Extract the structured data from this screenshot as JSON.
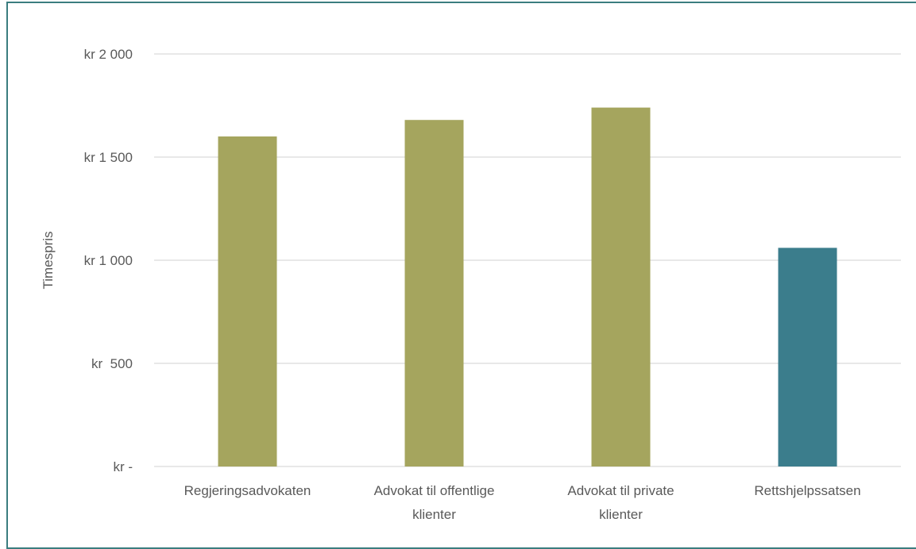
{
  "chart_data": {
    "type": "bar",
    "categories": [
      [
        "Regjeringsadvokaten"
      ],
      [
        "Advokat til offentlige",
        "klienter"
      ],
      [
        "Advokat til private",
        "klienter"
      ],
      [
        "Rettshjelpssatsen"
      ]
    ],
    "values": [
      1600,
      1680,
      1740,
      1060
    ],
    "bar_colors": [
      "#a5a55e",
      "#a5a55e",
      "#a5a55e",
      "#3b7d8c"
    ],
    "ylabel": "Timespris",
    "ylim": [
      0,
      2000
    ],
    "yticks": [
      {
        "value": 0,
        "label": "kr -"
      },
      {
        "value": 500,
        "label": "kr  500"
      },
      {
        "value": 1000,
        "label": "kr 1 000"
      },
      {
        "value": 1500,
        "label": "kr 1 500"
      },
      {
        "value": 2000,
        "label": "kr 2 000"
      }
    ],
    "grid": true,
    "gridline_color": "#d9d9d9",
    "frame_color": "#3a7d7f"
  }
}
